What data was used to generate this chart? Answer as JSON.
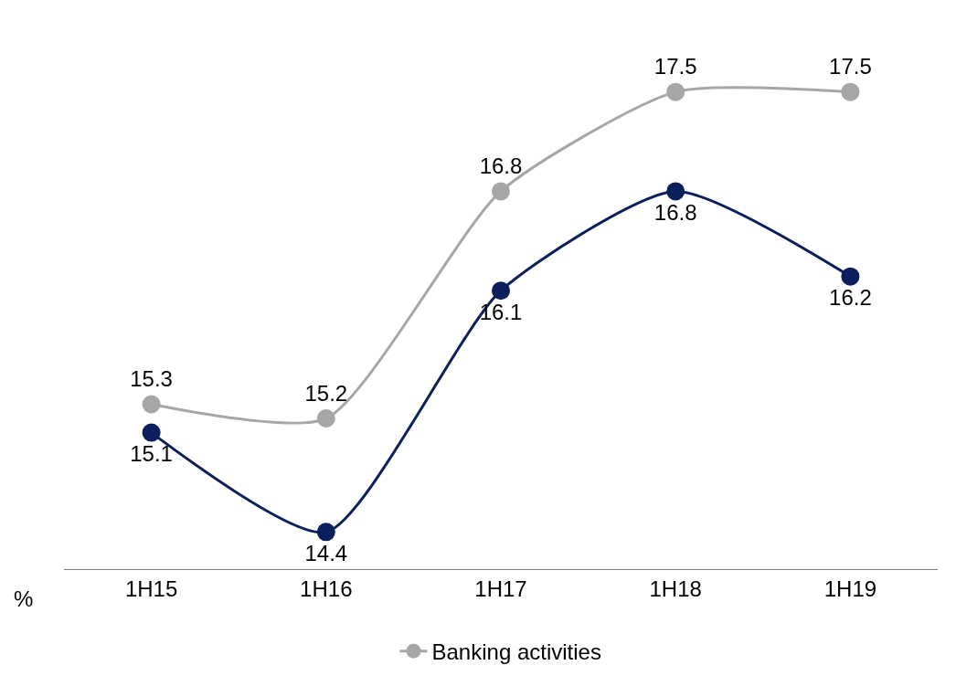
{
  "chart_data": {
    "type": "line",
    "ylabel": "%",
    "categories": [
      "1H15",
      "1H16",
      "1H17",
      "1H18",
      "1H19"
    ],
    "series": [
      {
        "color": "#0a1f5c",
        "values": [
          15.1,
          14.4,
          16.1,
          16.8,
          16.2
        ]
      },
      {
        "name": "Banking activities",
        "color": "#a6a6a6",
        "values": [
          15.3,
          15.2,
          16.8,
          17.5,
          17.5
        ]
      }
    ],
    "data_labels": true,
    "marker": "circle",
    "line_style": "solid",
    "legend": "bottom"
  }
}
